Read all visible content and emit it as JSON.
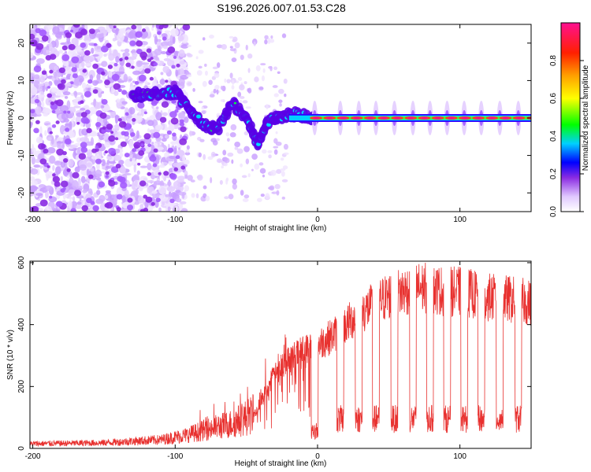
{
  "title": "S196.2026.007.01.53.C28",
  "chart_data": [
    {
      "type": "heatmap",
      "name": "spectrogram",
      "xlabel": "Height of straight line (km)",
      "ylabel": "Frequency (Hz)",
      "xlim": [
        -202,
        150
      ],
      "ylim": [
        -25,
        25
      ],
      "xticks": [
        -200,
        -100,
        0,
        100
      ],
      "yticks": [
        -20,
        -10,
        0,
        10,
        20
      ],
      "colorbar": {
        "label": "Normalized spectral amplitude",
        "range": [
          0,
          1
        ],
        "ticks": [
          "0.0",
          "0.2",
          "0.4",
          "0.6",
          "0.8"
        ],
        "tick_values": [
          0,
          0.2,
          0.4,
          0.6,
          0.8
        ]
      },
      "ridge": {
        "description_points_km_hz": [
          [
            -130,
            6
          ],
          [
            -115,
            6.5
          ],
          [
            -100,
            7
          ],
          [
            -90,
            2
          ],
          [
            -80,
            -2
          ],
          [
            -70,
            -3
          ],
          [
            -60,
            4
          ],
          [
            -50,
            0
          ],
          [
            -42,
            -7
          ],
          [
            -35,
            -1
          ],
          [
            -25,
            0.5
          ],
          [
            -15,
            1
          ],
          [
            0,
            0
          ],
          [
            150,
            0
          ]
        ],
        "steady_band_hz": 0
      }
    },
    {
      "type": "line",
      "name": "snr",
      "xlabel": "Height of straight line (km)",
      "ylabel": "SNR (10 * v/v)",
      "xlim": [
        -202,
        150
      ],
      "ylim": [
        0,
        605
      ],
      "xticks": [
        -200,
        -100,
        0,
        100
      ],
      "yticks": [
        0,
        200,
        400,
        600
      ],
      "color": "#e8312f",
      "envelope_km_snr": [
        [
          -202,
          15
        ],
        [
          -150,
          18
        ],
        [
          -110,
          28
        ],
        [
          -90,
          45
        ],
        [
          -75,
          65
        ],
        [
          -60,
          80
        ],
        [
          -45,
          110
        ],
        [
          -38,
          180
        ],
        [
          -30,
          260
        ],
        [
          -20,
          310
        ],
        [
          -10,
          340
        ],
        [
          0,
          360
        ],
        [
          10,
          390
        ],
        [
          20,
          430
        ],
        [
          30,
          470
        ],
        [
          40,
          500
        ],
        [
          50,
          530
        ],
        [
          60,
          545
        ],
        [
          70,
          560
        ],
        [
          80,
          555
        ],
        [
          90,
          545
        ],
        [
          100,
          545
        ],
        [
          110,
          535
        ],
        [
          120,
          525
        ],
        [
          130,
          520
        ],
        [
          140,
          515
        ],
        [
          150,
          505
        ]
      ],
      "dropouts_km": [
        -2,
        16,
        29,
        41,
        54,
        67,
        79,
        91,
        103,
        115,
        128,
        141
      ],
      "dropout_level": 100
    }
  ]
}
